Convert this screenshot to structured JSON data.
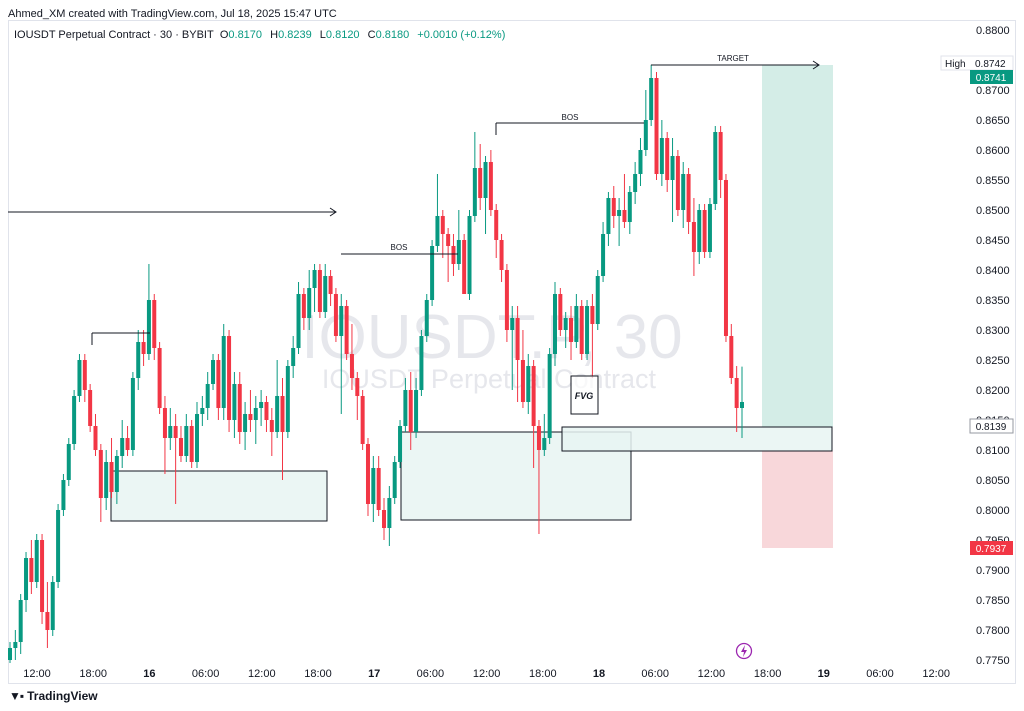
{
  "header": {
    "created_by": "Ahmed_XM created with TradingView.com, Jul 18, 2025 15:47 UTC",
    "symbol": "IOUSDT Perpetual Contract · 30 · BYBIT",
    "o_label": "O",
    "o_value": "0.8170",
    "h_label": "H",
    "h_value": "0.8239",
    "l_label": "L",
    "l_value": "0.8120",
    "c_label": "C",
    "c_value": "0.8180",
    "change": "+0.0010 (+0.12%)"
  },
  "watermark": {
    "line1": "IOUSDT.P, 30",
    "line2": "IOUSDT Perpetual Contract"
  },
  "footer": {
    "brand": "TradingView",
    "logo": "tv-logo"
  },
  "annotations": {
    "bos1": "BOS",
    "bos2": "BOS",
    "target": "TARGET",
    "fvg": "FVG"
  },
  "price_labels": {
    "high_label": "High",
    "high_value": "0.8742",
    "take_profit": "0.8741",
    "current": "0.8139",
    "stop_loss": "0.7937"
  },
  "colors": {
    "up": "#089981",
    "down": "#f23645",
    "zone_fill": "#e8f5f2",
    "target_fill": "#d4ede7",
    "stop_fill": "#f8d7da",
    "label_green": "#089981",
    "label_red": "#f23645"
  },
  "chart_data": {
    "type": "candlestick",
    "y_axis": {
      "ticks": [
        "0.8800",
        "0.8700",
        "0.8650",
        "0.8600",
        "0.8550",
        "0.8500",
        "0.8450",
        "0.8400",
        "0.8350",
        "0.8300",
        "0.8250",
        "0.8200",
        "0.8150",
        "0.8100",
        "0.8050",
        "0.8000",
        "0.7950",
        "0.7900",
        "0.7850",
        "0.7800",
        "0.7750"
      ],
      "range": [
        0.7745,
        0.88
      ]
    },
    "x_axis": {
      "ticks": [
        "12:00",
        "18:00",
        "16",
        "06:00",
        "12:00",
        "18:00",
        "17",
        "06:00",
        "12:00",
        "18:00",
        "18",
        "06:00",
        "12:00",
        "18:00",
        "19",
        "06:00",
        "12:00"
      ],
      "bold": [
        false,
        false,
        true,
        false,
        false,
        false,
        true,
        false,
        false,
        false,
        true,
        false,
        false,
        false,
        true,
        false,
        false
      ]
    },
    "candles": [
      [
        0.775,
        0.778,
        0.7745,
        0.777
      ],
      [
        0.777,
        0.78,
        0.775,
        0.778
      ],
      [
        0.778,
        0.786,
        0.776,
        0.785
      ],
      [
        0.785,
        0.793,
        0.783,
        0.792
      ],
      [
        0.792,
        0.795,
        0.786,
        0.788
      ],
      [
        0.788,
        0.796,
        0.787,
        0.795
      ],
      [
        0.795,
        0.796,
        0.781,
        0.783
      ],
      [
        0.783,
        0.788,
        0.777,
        0.78
      ],
      [
        0.78,
        0.789,
        0.779,
        0.788
      ],
      [
        0.788,
        0.801,
        0.787,
        0.8
      ],
      [
        0.8,
        0.806,
        0.799,
        0.805
      ],
      [
        0.805,
        0.812,
        0.804,
        0.811
      ],
      [
        0.811,
        0.82,
        0.81,
        0.819
      ],
      [
        0.819,
        0.826,
        0.818,
        0.825
      ],
      [
        0.825,
        0.826,
        0.818,
        0.82
      ],
      [
        0.82,
        0.821,
        0.813,
        0.814
      ],
      [
        0.814,
        0.816,
        0.809,
        0.81
      ],
      [
        0.81,
        0.811,
        0.798,
        0.802
      ],
      [
        0.802,
        0.81,
        0.8,
        0.808
      ],
      [
        0.808,
        0.812,
        0.802,
        0.803
      ],
      [
        0.803,
        0.81,
        0.801,
        0.809
      ],
      [
        0.809,
        0.815,
        0.807,
        0.812
      ],
      [
        0.812,
        0.814,
        0.809,
        0.81
      ],
      [
        0.81,
        0.823,
        0.809,
        0.822
      ],
      [
        0.822,
        0.83,
        0.82,
        0.828
      ],
      [
        0.828,
        0.83,
        0.824,
        0.826
      ],
      [
        0.826,
        0.841,
        0.825,
        0.835
      ],
      [
        0.835,
        0.836,
        0.825,
        0.827
      ],
      [
        0.827,
        0.828,
        0.816,
        0.817
      ],
      [
        0.817,
        0.819,
        0.806,
        0.812
      ],
      [
        0.812,
        0.817,
        0.81,
        0.814
      ],
      [
        0.814,
        0.816,
        0.801,
        0.812
      ],
      [
        0.812,
        0.814,
        0.808,
        0.809
      ],
      [
        0.809,
        0.816,
        0.808,
        0.814
      ],
      [
        0.814,
        0.815,
        0.807,
        0.808
      ],
      [
        0.808,
        0.818,
        0.807,
        0.816
      ],
      [
        0.816,
        0.819,
        0.814,
        0.817
      ],
      [
        0.817,
        0.823,
        0.815,
        0.821
      ],
      [
        0.821,
        0.826,
        0.82,
        0.825
      ],
      [
        0.825,
        0.826,
        0.815,
        0.817
      ],
      [
        0.817,
        0.831,
        0.815,
        0.829
      ],
      [
        0.829,
        0.83,
        0.813,
        0.815
      ],
      [
        0.815,
        0.823,
        0.812,
        0.821
      ],
      [
        0.821,
        0.823,
        0.811,
        0.813
      ],
      [
        0.813,
        0.818,
        0.81,
        0.816
      ],
      [
        0.816,
        0.82,
        0.813,
        0.815
      ],
      [
        0.815,
        0.819,
        0.811,
        0.817
      ],
      [
        0.817,
        0.82,
        0.814,
        0.818
      ],
      [
        0.818,
        0.819,
        0.813,
        0.815
      ],
      [
        0.815,
        0.817,
        0.809,
        0.813
      ],
      [
        0.813,
        0.825,
        0.812,
        0.819
      ],
      [
        0.819,
        0.822,
        0.805,
        0.813
      ],
      [
        0.813,
        0.825,
        0.812,
        0.824
      ],
      [
        0.824,
        0.829,
        0.822,
        0.827
      ],
      [
        0.827,
        0.838,
        0.826,
        0.836
      ],
      [
        0.836,
        0.837,
        0.83,
        0.832
      ],
      [
        0.832,
        0.84,
        0.83,
        0.837
      ],
      [
        0.837,
        0.841,
        0.833,
        0.84
      ],
      [
        0.84,
        0.841,
        0.832,
        0.833
      ],
      [
        0.833,
        0.841,
        0.832,
        0.839
      ],
      [
        0.839,
        0.84,
        0.834,
        0.836
      ],
      [
        0.836,
        0.837,
        0.828,
        0.829
      ],
      [
        0.829,
        0.836,
        0.816,
        0.834
      ],
      [
        0.834,
        0.835,
        0.825,
        0.826
      ],
      [
        0.826,
        0.831,
        0.82,
        0.822
      ],
      [
        0.822,
        0.823,
        0.815,
        0.819
      ],
      [
        0.819,
        0.82,
        0.81,
        0.811
      ],
      [
        0.811,
        0.812,
        0.799,
        0.801
      ],
      [
        0.801,
        0.809,
        0.798,
        0.807
      ],
      [
        0.807,
        0.809,
        0.799,
        0.8
      ],
      [
        0.8,
        0.802,
        0.795,
        0.797
      ],
      [
        0.797,
        0.804,
        0.794,
        0.802
      ],
      [
        0.802,
        0.809,
        0.801,
        0.808
      ],
      [
        0.808,
        0.815,
        0.807,
        0.814
      ],
      [
        0.814,
        0.822,
        0.813,
        0.82
      ],
      [
        0.82,
        0.823,
        0.81,
        0.813
      ],
      [
        0.813,
        0.822,
        0.812,
        0.82
      ],
      [
        0.82,
        0.83,
        0.819,
        0.829
      ],
      [
        0.829,
        0.836,
        0.828,
        0.835
      ],
      [
        0.835,
        0.845,
        0.834,
        0.844
      ],
      [
        0.844,
        0.856,
        0.843,
        0.849
      ],
      [
        0.849,
        0.85,
        0.842,
        0.846
      ],
      [
        0.846,
        0.847,
        0.838,
        0.844
      ],
      [
        0.844,
        0.846,
        0.839,
        0.841
      ],
      [
        0.841,
        0.85,
        0.84,
        0.845
      ],
      [
        0.845,
        0.846,
        0.837,
        0.836
      ],
      [
        0.836,
        0.85,
        0.835,
        0.849
      ],
      [
        0.849,
        0.863,
        0.848,
        0.857
      ],
      [
        0.857,
        0.861,
        0.85,
        0.852
      ],
      [
        0.852,
        0.859,
        0.846,
        0.858
      ],
      [
        0.858,
        0.86,
        0.849,
        0.85
      ],
      [
        0.85,
        0.851,
        0.842,
        0.845
      ],
      [
        0.845,
        0.846,
        0.838,
        0.84
      ],
      [
        0.84,
        0.841,
        0.828,
        0.83
      ],
      [
        0.83,
        0.834,
        0.82,
        0.832
      ],
      [
        0.832,
        0.834,
        0.818,
        0.825
      ],
      [
        0.825,
        0.83,
        0.817,
        0.818
      ],
      [
        0.818,
        0.826,
        0.816,
        0.824
      ],
      [
        0.824,
        0.825,
        0.807,
        0.814
      ],
      [
        0.814,
        0.815,
        0.796,
        0.81
      ],
      [
        0.81,
        0.816,
        0.809,
        0.812
      ],
      [
        0.812,
        0.827,
        0.811,
        0.826
      ],
      [
        0.826,
        0.838,
        0.824,
        0.836
      ],
      [
        0.836,
        0.837,
        0.829,
        0.83
      ],
      [
        0.83,
        0.833,
        0.827,
        0.832
      ],
      [
        0.832,
        0.834,
        0.825,
        0.828
      ],
      [
        0.828,
        0.836,
        0.827,
        0.834
      ],
      [
        0.834,
        0.835,
        0.825,
        0.826
      ],
      [
        0.826,
        0.835,
        0.825,
        0.834
      ],
      [
        0.834,
        0.836,
        0.822,
        0.831
      ],
      [
        0.831,
        0.84,
        0.83,
        0.839
      ],
      [
        0.839,
        0.848,
        0.838,
        0.846
      ],
      [
        0.846,
        0.853,
        0.844,
        0.852
      ],
      [
        0.852,
        0.854,
        0.847,
        0.849
      ],
      [
        0.849,
        0.852,
        0.844,
        0.85
      ],
      [
        0.85,
        0.856,
        0.847,
        0.848
      ],
      [
        0.848,
        0.854,
        0.846,
        0.853
      ],
      [
        0.853,
        0.858,
        0.851,
        0.856
      ],
      [
        0.856,
        0.862,
        0.854,
        0.86
      ],
      [
        0.86,
        0.87,
        0.859,
        0.865
      ],
      [
        0.865,
        0.8742,
        0.864,
        0.872
      ],
      [
        0.872,
        0.873,
        0.855,
        0.856
      ],
      [
        0.856,
        0.865,
        0.854,
        0.862
      ],
      [
        0.862,
        0.863,
        0.853,
        0.855
      ],
      [
        0.855,
        0.862,
        0.848,
        0.859
      ],
      [
        0.859,
        0.86,
        0.849,
        0.85
      ],
      [
        0.85,
        0.858,
        0.847,
        0.856
      ],
      [
        0.856,
        0.857,
        0.846,
        0.848
      ],
      [
        0.848,
        0.852,
        0.839,
        0.843
      ],
      [
        0.843,
        0.851,
        0.841,
        0.85
      ],
      [
        0.85,
        0.851,
        0.842,
        0.843
      ],
      [
        0.843,
        0.852,
        0.842,
        0.851
      ],
      [
        0.851,
        0.864,
        0.85,
        0.863
      ],
      [
        0.863,
        0.864,
        0.852,
        0.855
      ],
      [
        0.855,
        0.856,
        0.828,
        0.829
      ],
      [
        0.829,
        0.831,
        0.821,
        0.822
      ],
      [
        0.822,
        0.824,
        0.813,
        0.817
      ],
      [
        0.817,
        0.8239,
        0.812,
        0.818
      ]
    ]
  }
}
